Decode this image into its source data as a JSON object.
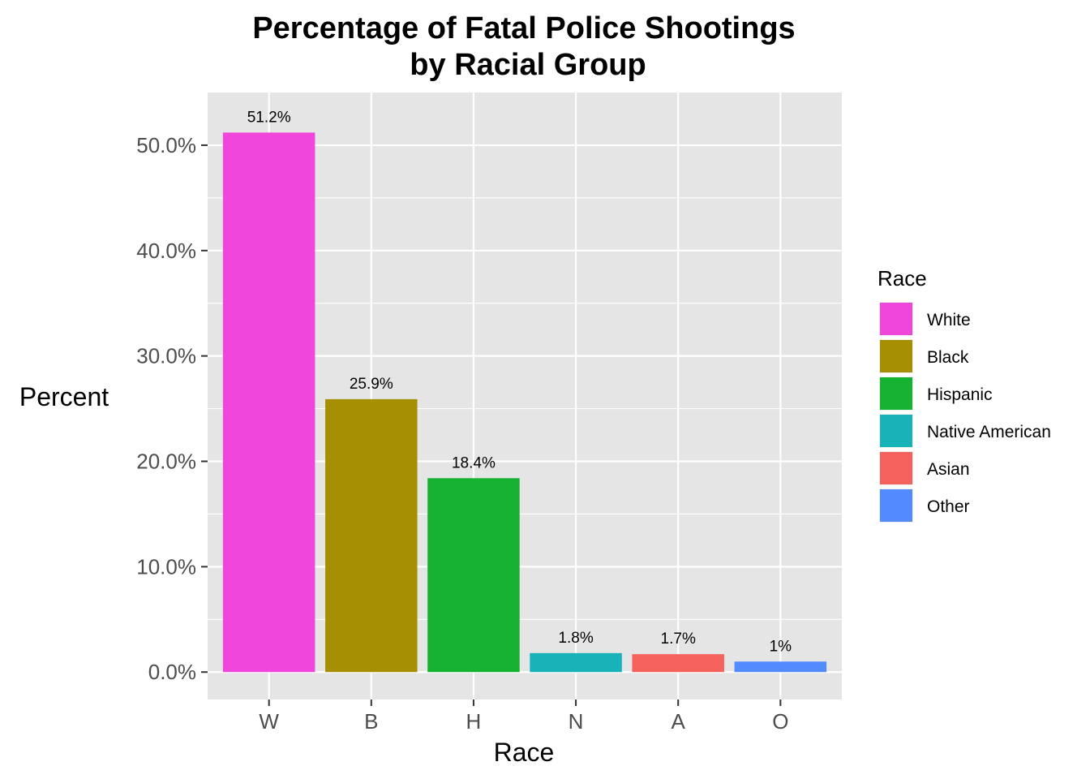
{
  "chart_data": {
    "type": "bar",
    "title_lines": [
      "Percentage of Fatal Police Shootings",
      "by Racial Group"
    ],
    "xlabel": "Race",
    "ylabel": "Percent",
    "categories": [
      "W",
      "B",
      "H",
      "N",
      "A",
      "O"
    ],
    "values": [
      51.2,
      25.9,
      18.4,
      1.8,
      1.7,
      1.0
    ],
    "value_labels": [
      "51.2%",
      "25.9%",
      "18.4%",
      "1.8%",
      "1.7%",
      "1%"
    ],
    "colors": [
      "#F046DC",
      "#A68F03",
      "#16B332",
      "#17B3B8",
      "#F5625D",
      "#538BFF"
    ],
    "ylim": [
      -2.6,
      55
    ],
    "yticks": [
      0,
      10,
      20,
      30,
      40,
      50
    ],
    "ytick_labels": [
      "0.0%",
      "10.0%",
      "20.0%",
      "30.0%",
      "40.0%",
      "50.0%"
    ],
    "grid": true,
    "panel_background": "#E5E5E5",
    "legend": {
      "title": "Race",
      "position": "right",
      "entries": [
        "White",
        "Black",
        "Hispanic",
        "Native American",
        "Asian",
        "Other"
      ]
    }
  }
}
